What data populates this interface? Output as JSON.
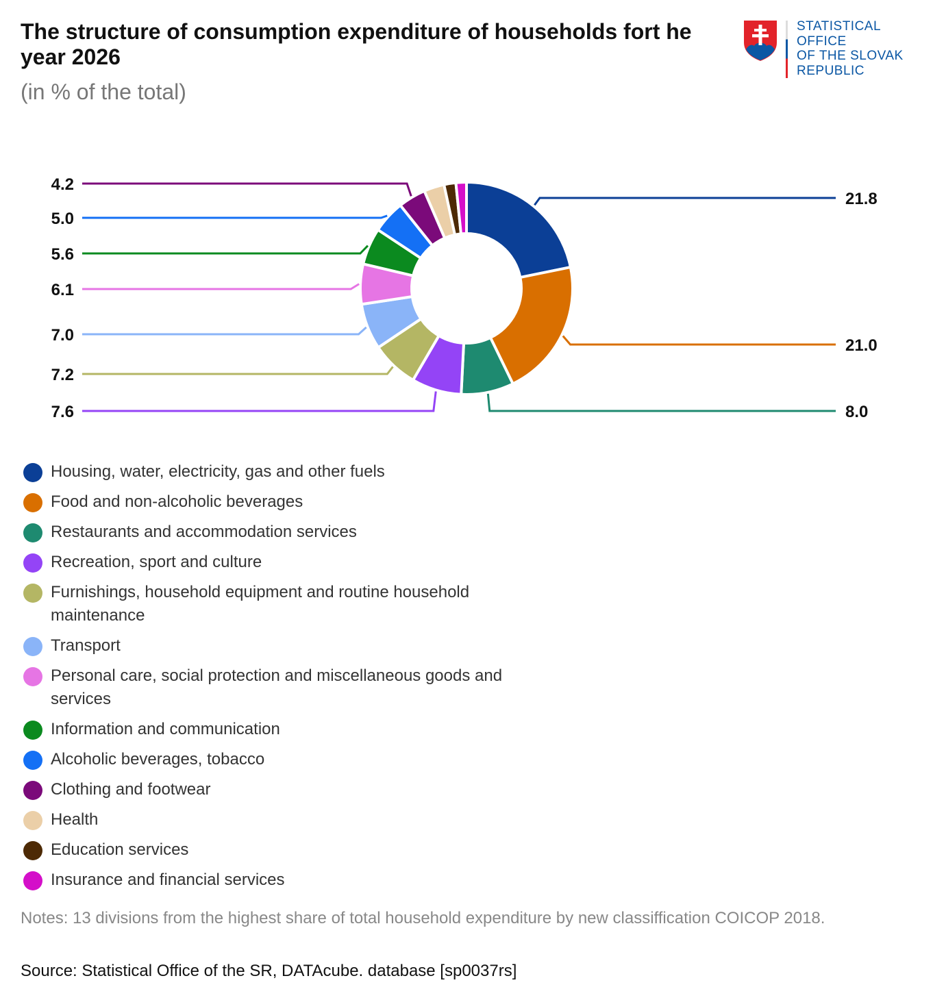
{
  "header": {
    "title": "The structure of consumption expenditure of households fort he year 2026",
    "subtitle": "(in % of the total)"
  },
  "logo": {
    "lines": [
      "STATISTICAL",
      "OFFICE",
      "OF THE SLOVAK",
      "REPUBLIC"
    ]
  },
  "chart_data": {
    "type": "pie",
    "variant": "donut",
    "title": "The structure of consumption expenditure of households fort he year 2026",
    "subtitle": "(in % of the total)",
    "categories": [
      "Housing, water, electricity, gas and other fuels",
      "Food and non-alcoholic beverages",
      "Restaurants and accommodation services",
      "Recreation, sport and culture",
      "Furnishings, household equipment and routine household maintenance",
      "Transport",
      "Personal care, social protection and miscellaneous goods and services",
      "Information and communication",
      "Alcoholic beverages, tobacco",
      "Clothing and footwear",
      "Health",
      "Education services",
      "Insurance and financial services"
    ],
    "values": [
      21.8,
      21.0,
      8.0,
      7.6,
      7.2,
      7.0,
      6.1,
      5.6,
      5.0,
      4.2,
      3.1,
      1.8,
      1.6
    ],
    "data_labels": [
      "21.8",
      "21.0",
      "8.0",
      "7.6",
      "7.2",
      "7.0",
      "6.1",
      "5.6",
      "5.0",
      "4.2",
      null,
      null,
      null
    ],
    "colors": [
      "#0b3f96",
      "#d96f00",
      "#1e8a70",
      "#9444f6",
      "#b4b664",
      "#8ab4f8",
      "#e675e4",
      "#0b8a1f",
      "#1470f5",
      "#7b0a7a",
      "#ebcfa8",
      "#4d2a05",
      "#d40fc9"
    ],
    "legend_position": "bottom-left"
  },
  "notes": "Notes: 13 divisions from the highest share of total household expenditure by new classiffication COICOP 2018.",
  "source": "Source: Statistical Office of the SR, DATAcube. database [sp0037rs]"
}
